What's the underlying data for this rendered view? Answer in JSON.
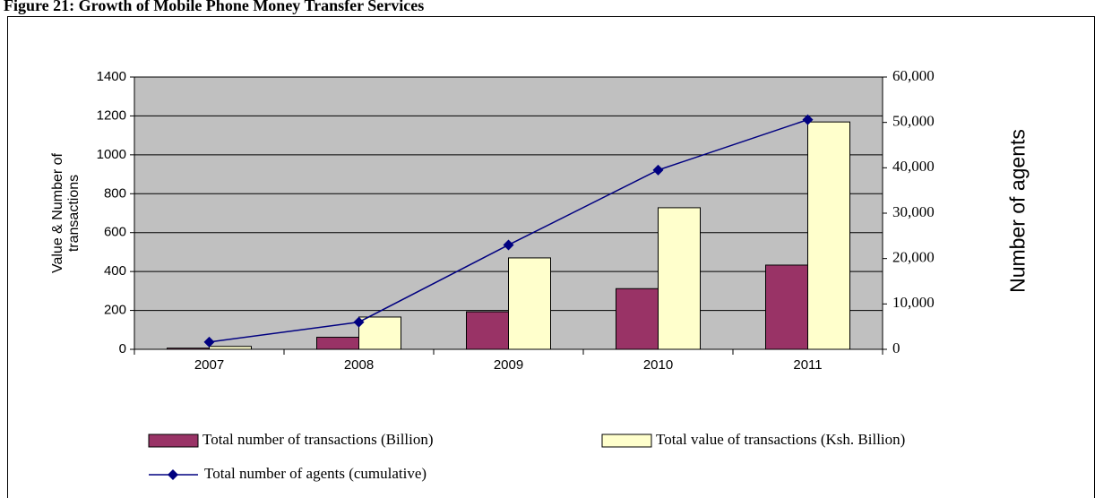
{
  "chart_data": {
    "type": "bar-line",
    "title": "Figure 21: Growth of Mobile Phone Money Transfer Services",
    "categories": [
      "2007",
      "2008",
      "2009",
      "2010",
      "2011"
    ],
    "y_label": "Value & Number of transactions",
    "y2_label": "Number of agents",
    "ylim": [
      0,
      1400
    ],
    "yticks": [
      0,
      200,
      400,
      600,
      800,
      1000,
      1200,
      1400
    ],
    "y2lim": [
      0,
      60000
    ],
    "y2ticks": [
      0,
      {
        "value": 10000,
        "label": "10,000"
      },
      {
        "value": 20000,
        "label": "20,000"
      },
      {
        "value": 30000,
        "label": "30,000"
      },
      {
        "value": 40000,
        "label": "40,000"
      },
      {
        "value": 50000,
        "label": "50,000"
      },
      {
        "value": 60000,
        "label": "60,000"
      }
    ],
    "grid": true,
    "legend": "bottom",
    "series": [
      {
        "name": "Total number of transactions (Billion)",
        "color": "#993366",
        "type": "bar",
        "values": [
          6,
          62,
          193,
          312,
          433
        ]
      },
      {
        "name": "Total value of transactions (Ksh. Billion)",
        "color": "#ffffcc",
        "type": "bar",
        "values": [
          15,
          166,
          470,
          728,
          1169
        ]
      },
      {
        "name": "Total number of agents (cumulative)",
        "color": "#000080",
        "type": "line",
        "axis": "y2",
        "values": [
          1600,
          6000,
          23000,
          39500,
          50600
        ]
      }
    ]
  }
}
